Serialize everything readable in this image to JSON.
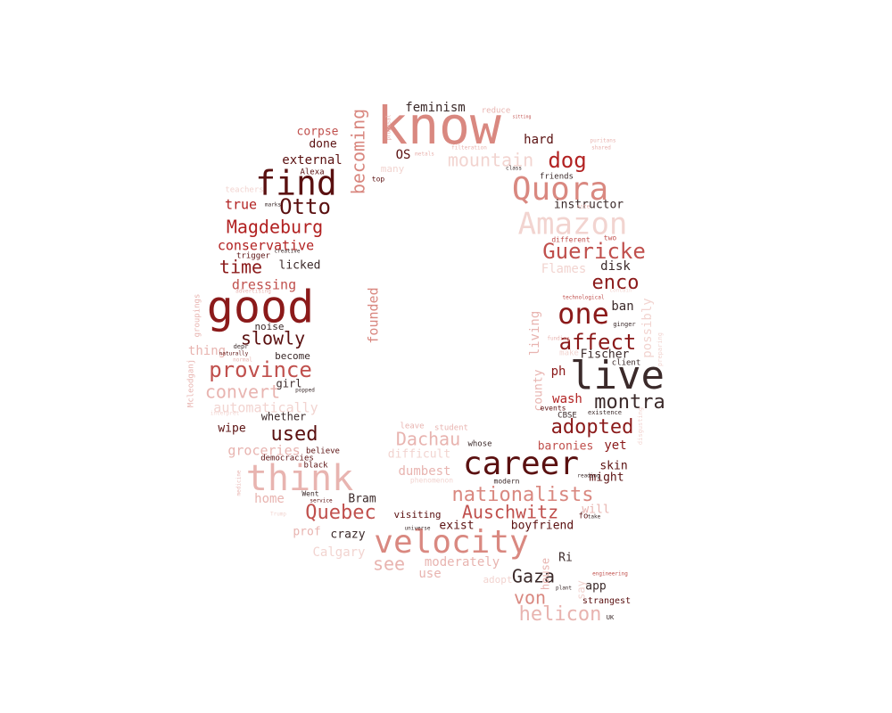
{
  "palette": {
    "c1": "#8b1a1a",
    "c2": "#b22222",
    "c3": "#c0504d",
    "c4": "#d98880",
    "c5": "#e8b4b0",
    "c6": "#f2d4d0",
    "c7": "#5a1010",
    "c8": "#3b2a2a",
    "c9": "#6e1515"
  },
  "words": [
    {
      "text": "know",
      "color": "c4"
    },
    {
      "text": "good",
      "color": "c1"
    },
    {
      "text": "live",
      "color": "c8"
    },
    {
      "text": "think",
      "color": "c5"
    },
    {
      "text": "career",
      "color": "c7"
    },
    {
      "text": "velocity",
      "color": "c4"
    },
    {
      "text": "find",
      "color": "c7"
    },
    {
      "text": "Quora",
      "color": "c4"
    },
    {
      "text": "Amazon",
      "color": "c6"
    },
    {
      "text": "one",
      "color": "c1"
    },
    {
      "text": "Otto",
      "color": "c7"
    },
    {
      "text": "Magdeburg",
      "color": "c2"
    },
    {
      "text": "province",
      "color": "c3"
    },
    {
      "text": "Guericke",
      "color": "c3"
    },
    {
      "text": "affect",
      "color": "c1"
    },
    {
      "text": "adopted",
      "color": "c1"
    },
    {
      "text": "montra",
      "color": "c8"
    },
    {
      "text": "nationalists",
      "color": "c4"
    },
    {
      "text": "Quebec",
      "color": "c3"
    },
    {
      "text": "Auschwitz",
      "color": "c3"
    },
    {
      "text": "mountain",
      "color": "c6"
    },
    {
      "text": "dog",
      "color": "c2"
    },
    {
      "text": "enco",
      "color": "c1"
    },
    {
      "text": "slowly",
      "color": "c7"
    },
    {
      "text": "used",
      "color": "c7"
    },
    {
      "text": "time",
      "color": "c1"
    },
    {
      "text": "convert",
      "color": "c5"
    },
    {
      "text": "Dachau",
      "color": "c5"
    },
    {
      "text": "becoming",
      "color": "c4"
    },
    {
      "text": "helicon",
      "color": "c5"
    },
    {
      "text": "Gaza",
      "color": "c8"
    },
    {
      "text": "von",
      "color": "c4"
    },
    {
      "text": "see",
      "color": "c5"
    },
    {
      "text": "automatically",
      "color": "c6"
    },
    {
      "text": "dressing",
      "color": "c3"
    },
    {
      "text": "conservative",
      "color": "c2"
    },
    {
      "text": "founded",
      "color": "c4"
    },
    {
      "text": "external",
      "color": "c7"
    },
    {
      "text": "feminism",
      "color": "c8"
    },
    {
      "text": "groceries",
      "color": "c5"
    },
    {
      "text": "moderately",
      "color": "c5"
    },
    {
      "text": "Calgary",
      "color": "c6"
    },
    {
      "text": "Flames",
      "color": "c6"
    },
    {
      "text": "instructor",
      "color": "c8"
    },
    {
      "text": "true",
      "color": "c2"
    },
    {
      "text": "licked",
      "color": "c8"
    },
    {
      "text": "corpse",
      "color": "c3"
    },
    {
      "text": "done",
      "color": "c7"
    },
    {
      "text": "OS",
      "color": "c7"
    },
    {
      "text": "hard",
      "color": "c7"
    },
    {
      "text": "disk",
      "color": "c8"
    },
    {
      "text": "ban",
      "color": "c8"
    },
    {
      "text": "possibly",
      "color": "c6"
    },
    {
      "text": "living",
      "color": "c5"
    },
    {
      "text": "Fischer",
      "color": "c8"
    },
    {
      "text": "ph",
      "color": "c1"
    },
    {
      "text": "wash",
      "color": "c2"
    },
    {
      "text": "county",
      "color": "c5"
    },
    {
      "text": "baronies",
      "color": "c3"
    },
    {
      "text": "yet",
      "color": "c1"
    },
    {
      "text": "skin",
      "color": "c7"
    },
    {
      "text": "might",
      "color": "c7"
    },
    {
      "text": "will",
      "color": "c5"
    },
    {
      "text": "boyfriend",
      "color": "c7"
    },
    {
      "text": "exist",
      "color": "c7"
    },
    {
      "text": "visiting",
      "color": "c7"
    },
    {
      "text": "crazy",
      "color": "c8"
    },
    {
      "text": "home",
      "color": "c5"
    },
    {
      "text": "Bram",
      "color": "c8"
    },
    {
      "text": "prof",
      "color": "c5"
    },
    {
      "text": "use",
      "color": "c5"
    },
    {
      "text": "dumbest",
      "color": "c5"
    },
    {
      "text": "difficult",
      "color": "c6"
    },
    {
      "text": "thing",
      "color": "c5"
    },
    {
      "text": "wipe",
      "color": "c7"
    },
    {
      "text": "whether",
      "color": "c8"
    },
    {
      "text": "noise",
      "color": "c8"
    },
    {
      "text": "become",
      "color": "c8"
    },
    {
      "text": "girl",
      "color": "c8"
    },
    {
      "text": "adopt",
      "color": "c6"
    },
    {
      "text": "house",
      "color": "c5"
    },
    {
      "text": "say",
      "color": "c6"
    },
    {
      "text": "app",
      "color": "c8"
    },
    {
      "text": "strangest",
      "color": "c7"
    },
    {
      "text": "many",
      "color": "c6"
    },
    {
      "text": "Alexa",
      "color": "c7"
    },
    {
      "text": "friends",
      "color": "c8"
    },
    {
      "text": "reduce",
      "color": "c5"
    },
    {
      "text": "teachers",
      "color": "c6"
    },
    {
      "text": "trigger",
      "color": "c7"
    },
    {
      "text": "advertising",
      "color": "c5"
    },
    {
      "text": "groupings",
      "color": "c5"
    },
    {
      "text": "Mcleodganj",
      "color": "c5"
    },
    {
      "text": "believe",
      "color": "c7"
    },
    {
      "text": "democracies",
      "color": "c7"
    },
    {
      "text": "black",
      "color": "c7"
    },
    {
      "text": "Went",
      "color": "c8"
    },
    {
      "text": "service",
      "color": "c7"
    },
    {
      "text": "leave",
      "color": "c5"
    },
    {
      "text": "student",
      "color": "c5"
    },
    {
      "text": "whose",
      "color": "c8"
    },
    {
      "text": "modern",
      "color": "c8"
    },
    {
      "text": "universe",
      "color": "c8"
    },
    {
      "text": "phenomenon",
      "color": "c6"
    },
    {
      "text": "client",
      "color": "c8"
    },
    {
      "text": "make",
      "color": "c6"
    },
    {
      "text": "events",
      "color": "c7"
    },
    {
      "text": "CBSE",
      "color": "c8"
    },
    {
      "text": "existence",
      "color": "c8"
    },
    {
      "text": "different",
      "color": "c3"
    },
    {
      "text": "two",
      "color": "c3"
    },
    {
      "text": "class",
      "color": "c8"
    },
    {
      "text": "top",
      "color": "c7"
    },
    {
      "text": "proposal",
      "color": "c5"
    },
    {
      "text": "technological",
      "color": "c3"
    },
    {
      "text": "ginger",
      "color": "c8"
    },
    {
      "text": "funding",
      "color": "c5"
    },
    {
      "text": "plant",
      "color": "c8"
    },
    {
      "text": "UK",
      "color": "c8"
    },
    {
      "text": "creative",
      "color": "c8"
    },
    {
      "text": "naturally",
      "color": "c7"
    },
    {
      "text": "normal",
      "color": "c5"
    },
    {
      "text": "popped",
      "color": "c8"
    },
    {
      "text": "Trump",
      "color": "c6"
    },
    {
      "text": "medicine",
      "color": "c5"
    },
    {
      "text": "engineering",
      "color": "c3"
    },
    {
      "text": "Ri",
      "color": "c8"
    },
    {
      "text": "puritans",
      "color": "c5"
    },
    {
      "text": "shared",
      "color": "c5"
    },
    {
      "text": "reading",
      "color": "c8"
    },
    {
      "text": "take",
      "color": "c8"
    },
    {
      "text": "fo",
      "color": "c7"
    },
    {
      "text": "depr",
      "color": "c8"
    },
    {
      "text": "interpret",
      "color": "c6"
    },
    {
      "text": "marks",
      "color": "c8"
    },
    {
      "text": "contain",
      "color": "c6"
    },
    {
      "text": "preparing",
      "color": "c6"
    },
    {
      "text": "disgusting",
      "color": "c6"
    },
    {
      "text": "filteration",
      "color": "c5"
    },
    {
      "text": "metals",
      "color": "c5"
    },
    {
      "text": "sitting",
      "color": "c3"
    },
    {
      "text": "site",
      "color": "c5"
    }
  ]
}
